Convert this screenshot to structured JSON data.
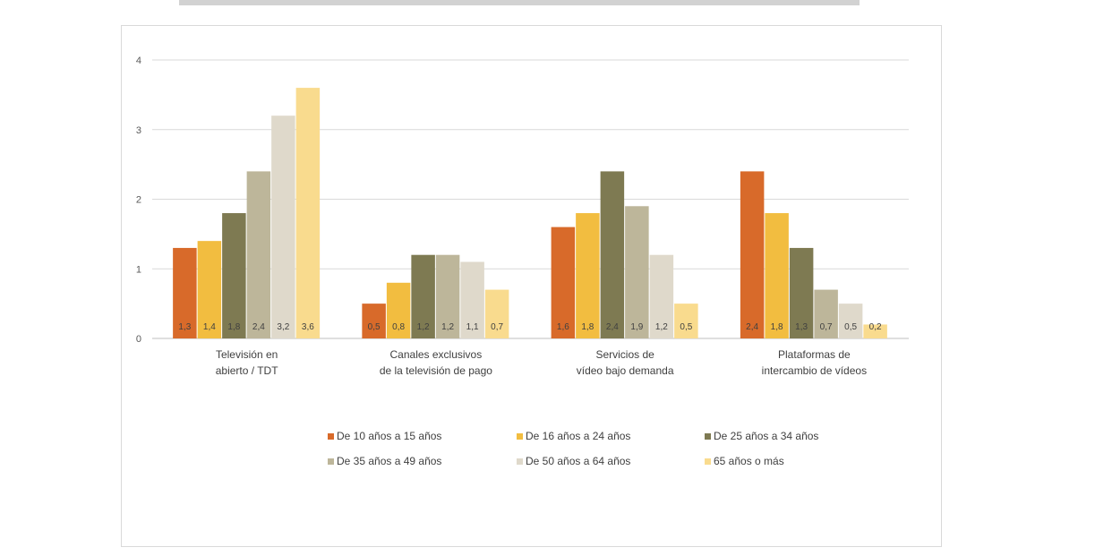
{
  "chart_data": {
    "type": "bar",
    "title": "",
    "xlabel": "",
    "ylabel": "",
    "ylim": [
      0,
      4
    ],
    "yticks": [
      0,
      1,
      2,
      3,
      4
    ],
    "grid": true,
    "legend_position": "bottom",
    "categories": [
      [
        "Televisión en",
        "abierto / TDT"
      ],
      [
        "Canales exclusivos",
        "de la televisión de pago"
      ],
      [
        "Servicios de",
        "vídeo bajo demanda"
      ],
      [
        "Plataformas de",
        "intercambio de vídeos"
      ]
    ],
    "series": [
      {
        "name": "De 10 años a 15 años",
        "color": "#D86A2A",
        "values": [
          1.3,
          0.5,
          1.6,
          2.4
        ],
        "labels": [
          "1,3",
          "0,5",
          "1,6",
          "2,4"
        ]
      },
      {
        "name": "De 16 años a 24 años",
        "color": "#F2BD40",
        "values": [
          1.4,
          0.8,
          1.8,
          1.8
        ],
        "labels": [
          "1,4",
          "0,8",
          "1,8",
          "1,8"
        ]
      },
      {
        "name": "De 25 años a 34 años",
        "color": "#7E7A52",
        "values": [
          1.8,
          1.2,
          2.4,
          1.3
        ],
        "labels": [
          "1,8",
          "1,2",
          "2,4",
          "1,3"
        ]
      },
      {
        "name": "De 35 años a 49 años",
        "color": "#BDB69A",
        "values": [
          2.4,
          1.2,
          1.9,
          0.7
        ],
        "labels": [
          "2,4",
          "1,2",
          "1,9",
          "0,7"
        ]
      },
      {
        "name": "De 50 años a 64 años",
        "color": "#DFD9CB",
        "values": [
          3.2,
          1.1,
          1.2,
          0.5
        ],
        "labels": [
          "3,2",
          "1,1",
          "1,2",
          "0,5"
        ]
      },
      {
        "name": "65 años o más",
        "color": "#F9DB8E",
        "values": [
          3.6,
          0.7,
          0.5,
          0.2
        ],
        "labels": [
          "3,6",
          "0,7",
          "0,5",
          "0,2"
        ]
      }
    ]
  },
  "colors": {
    "gridline": "#d9d9d9",
    "axis": "#bfbfbf",
    "frame_border": "#d9d9d9"
  }
}
